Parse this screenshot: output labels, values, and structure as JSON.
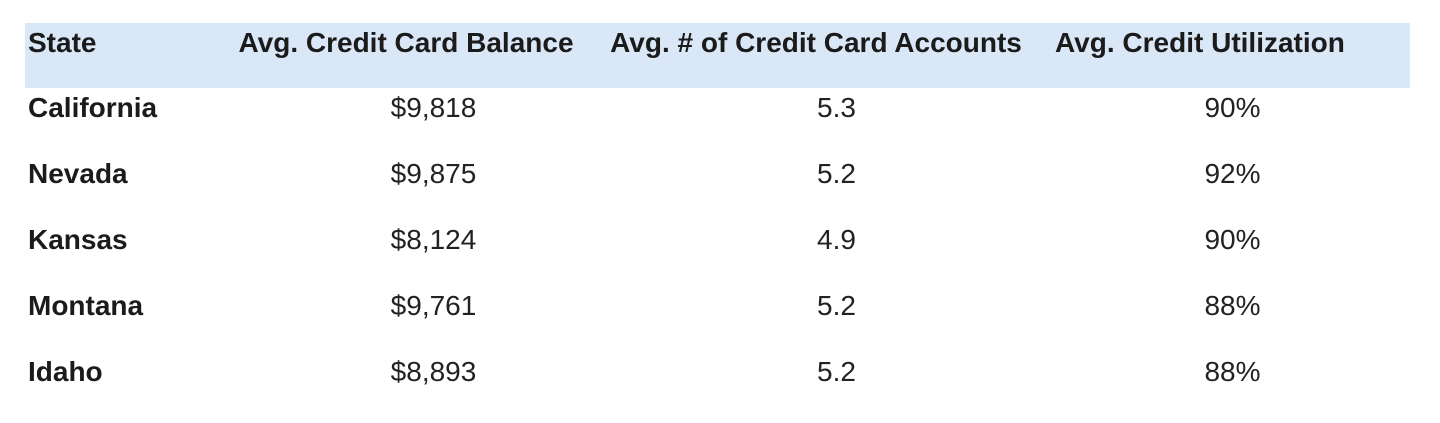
{
  "colors": {
    "header_bg": "#d9e7f6",
    "header_text": "#1b1b1b",
    "state_text": "#1b1b1b",
    "value_text": "#222222",
    "page_bg": "#ffffff"
  },
  "chart_data": {
    "type": "table",
    "columns": [
      "State",
      "Avg. Credit Card Balance",
      "Avg. # of Credit Card Accounts",
      "Avg. Credit Utilization"
    ],
    "rows": [
      [
        "California",
        "$9,818",
        "5.3",
        "90%"
      ],
      [
        "Nevada",
        "$9,875",
        "5.2",
        "92%"
      ],
      [
        "Kansas",
        "$8,124",
        "4.9",
        "90%"
      ],
      [
        "Montana",
        "$9,761",
        "5.2",
        "88%"
      ],
      [
        "Idaho",
        "$8,893",
        "5.2",
        "88%"
      ]
    ],
    "numeric": {
      "balance": [
        9818,
        9875,
        8124,
        9761,
        8893
      ],
      "accounts": [
        5.3,
        5.2,
        4.9,
        5.2,
        5.2
      ],
      "utilization_pct": [
        90,
        92,
        90,
        88,
        88
      ]
    },
    "layout": {
      "header_band": "light-blue",
      "gridlines": false
    }
  }
}
